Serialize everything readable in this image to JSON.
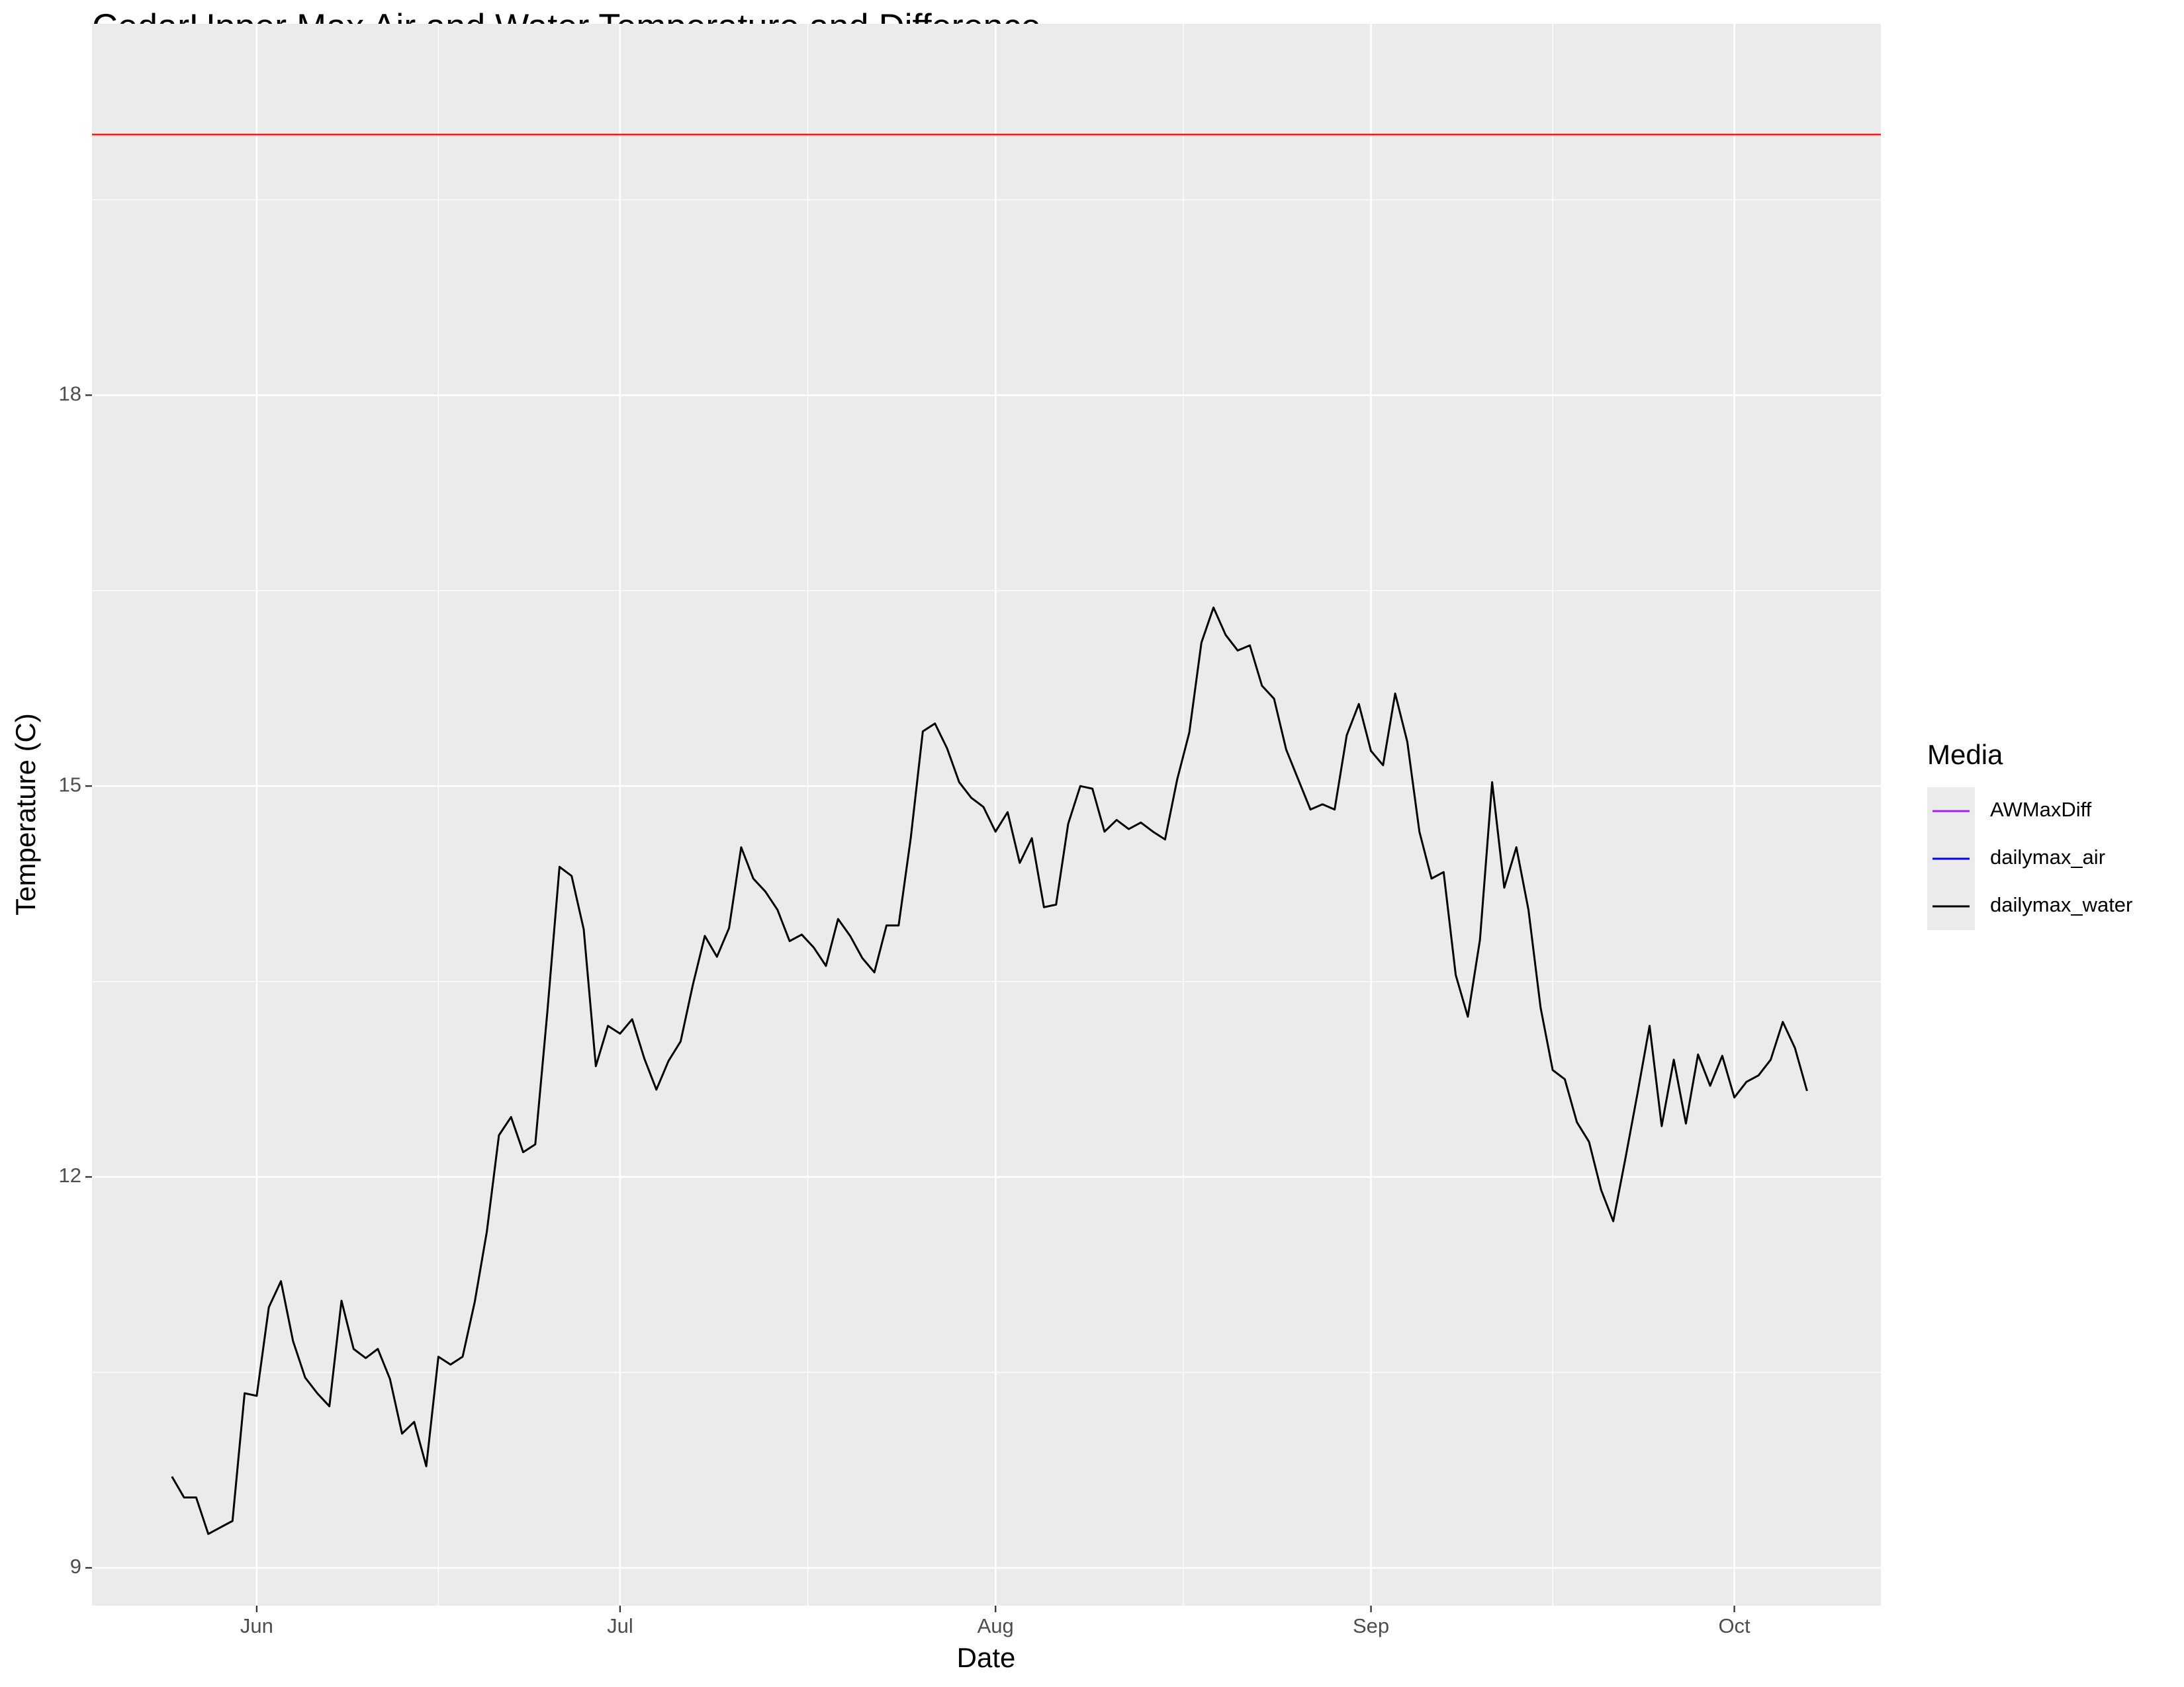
{
  "chart_data": {
    "type": "line",
    "title": "CedarUpper Max Air and Water Temperature and Difference",
    "x_label": "Date",
    "y_label": "Temperature (C)",
    "x": [
      -7,
      -6,
      -5,
      -4,
      -3,
      -2,
      -1,
      0,
      1,
      2,
      3,
      4,
      5,
      6,
      7,
      8,
      9,
      10,
      11,
      12,
      13,
      14,
      15,
      16,
      17,
      18,
      19,
      20,
      21,
      22,
      23,
      24,
      25,
      26,
      27,
      28,
      29,
      30,
      31,
      32,
      33,
      34,
      35,
      36,
      37,
      38,
      39,
      40,
      41,
      42,
      43,
      44,
      45,
      46,
      47,
      48,
      49,
      50,
      51,
      52,
      53,
      54,
      55,
      56,
      57,
      58,
      59,
      60,
      61,
      62,
      63,
      64,
      65,
      66,
      67,
      68,
      69,
      70,
      71,
      72,
      73,
      74,
      75,
      76,
      77,
      78,
      79,
      80,
      81,
      82,
      83,
      84,
      85,
      86,
      87,
      88,
      89,
      90,
      91,
      92,
      93,
      94,
      95,
      96,
      97,
      98,
      99,
      100,
      101,
      102,
      103,
      104,
      105,
      106,
      107,
      108,
      109,
      110,
      111,
      112,
      113,
      114,
      115,
      116,
      117,
      118,
      119,
      120,
      121,
      122,
      123,
      124,
      125,
      126,
      127,
      128
    ],
    "series": [
      {
        "name": "dailymax_water",
        "color": "#000000",
        "values": [
          9.7,
          9.54,
          9.54,
          9.26,
          9.31,
          9.36,
          10.34,
          10.32,
          11.0,
          11.2,
          10.74,
          10.46,
          10.34,
          10.24,
          11.05,
          10.68,
          10.61,
          10.68,
          10.45,
          10.03,
          10.12,
          9.78,
          10.62,
          10.56,
          10.62,
          11.04,
          11.58,
          12.32,
          12.46,
          12.19,
          12.25,
          13.27,
          14.38,
          14.31,
          13.9,
          12.85,
          13.16,
          13.1,
          13.21,
          12.91,
          12.67,
          12.89,
          13.04,
          13.47,
          13.85,
          13.69,
          13.91,
          14.53,
          14.29,
          14.19,
          14.05,
          13.81,
          13.86,
          13.76,
          13.62,
          13.98,
          13.85,
          13.68,
          13.57,
          13.93,
          13.93,
          14.6,
          15.42,
          15.48,
          15.29,
          15.03,
          14.91,
          14.84,
          14.65,
          14.8,
          14.41,
          14.6,
          14.07,
          14.09,
          14.71,
          15.0,
          14.98,
          14.65,
          14.74,
          14.67,
          14.72,
          14.65,
          14.59,
          15.05,
          15.41,
          16.1,
          16.37,
          16.16,
          16.04,
          16.08,
          15.77,
          15.67,
          15.28,
          15.05,
          14.82,
          14.86,
          14.82,
          15.39,
          15.63,
          15.27,
          15.16,
          15.71,
          15.34,
          14.65,
          14.29,
          14.34,
          13.55,
          13.23,
          13.82,
          15.03,
          14.22,
          14.53,
          14.05,
          13.3,
          12.82,
          12.75,
          12.42,
          12.27,
          11.9,
          11.66,
          12.14,
          12.64,
          13.16,
          12.39,
          12.9,
          12.41,
          12.94,
          12.7,
          12.93,
          12.61,
          12.73,
          12.78,
          12.9,
          13.19,
          12.99,
          12.66
        ]
      }
    ],
    "legend_title": "Media",
    "legend_entries": [
      {
        "name": "AWMaxDiff",
        "color": "#A020F0"
      },
      {
        "name": "dailymax_air",
        "color": "#0000FF"
      }
    ],
    "reference_line": {
      "value": 20,
      "color": "#FF0000"
    },
    "xlim": [
      -13.6,
      134.1
    ],
    "xticks": [
      {
        "value": 0,
        "label": "Jun"
      },
      {
        "value": 30,
        "label": "Jul"
      },
      {
        "value": 61,
        "label": "Aug"
      },
      {
        "value": 92,
        "label": "Sep"
      },
      {
        "value": 122,
        "label": "Oct"
      }
    ],
    "xminor": [
      15,
      45.5,
      76.5,
      107
    ],
    "ylim": [
      8.71,
      20.85
    ],
    "yticks": [
      9,
      12,
      15,
      18
    ],
    "yminor": [
      10.5,
      13.5,
      16.5,
      19.5
    ],
    "grid": true
  }
}
